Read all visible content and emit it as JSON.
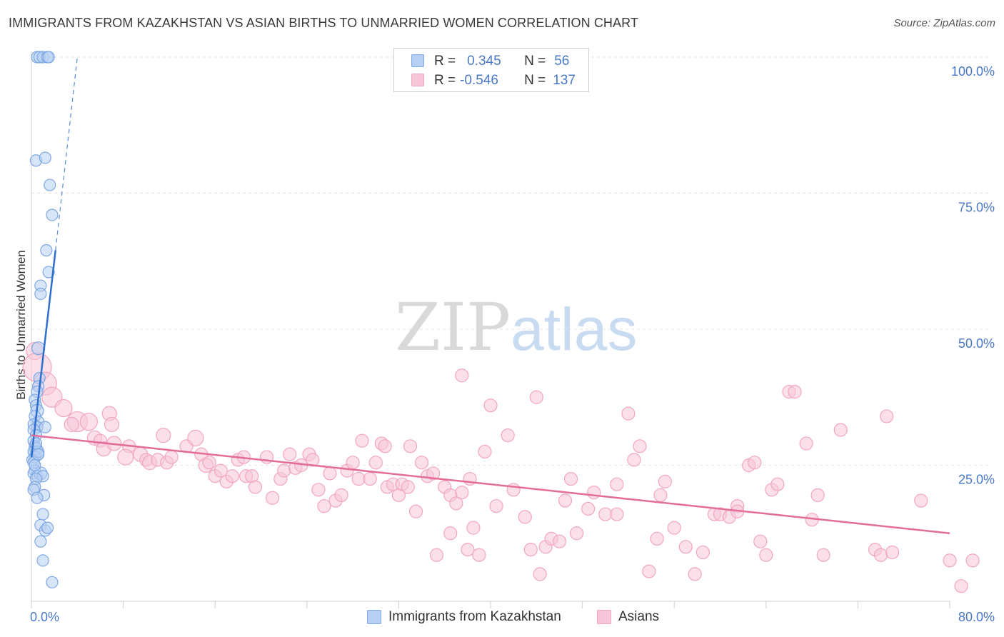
{
  "chart_data": {
    "type": "scatter",
    "title": "IMMIGRANTS FROM KAZAKHSTAN VS ASIAN BIRTHS TO UNMARRIED WOMEN CORRELATION CHART",
    "source": "Source: ZipAtlas.com",
    "xlabel": "",
    "ylabel": "Births to Unmarried Women",
    "xlim": [
      0,
      80
    ],
    "ylim": [
      0,
      100
    ],
    "x_tick_labels": [
      "0.0%",
      "80.0%"
    ],
    "y_tick_labels": [
      "100.0%",
      "75.0%",
      "50.0%",
      "25.0%"
    ],
    "y_tick_values": [
      100,
      75,
      50,
      25
    ],
    "watermark": {
      "part1": "ZIP",
      "part2": "atlas"
    },
    "legend": [
      {
        "r_label": "R =",
        "r_value": "0.345",
        "n_label": "N =",
        "n_value": "56"
      },
      {
        "r_label": "R =",
        "r_value": "-0.546",
        "n_label": "N =",
        "n_value": "137"
      }
    ],
    "series": [
      {
        "name": "Immigrants from Kazakhstan",
        "color": "#7ea7e3",
        "fill": "#b7cff3",
        "line_color": "#2f6fd0",
        "trend": {
          "x0": 0.0,
          "y0": 26.5,
          "x1": 2.1,
          "y1": 64.5,
          "dash_x1": 4.0,
          "dash_y1": 100
        },
        "points": [
          [
            0.5,
            100,
            8
          ],
          [
            0.7,
            100,
            8
          ],
          [
            1.0,
            100,
            8
          ],
          [
            1.4,
            100,
            8
          ],
          [
            1.5,
            100,
            8
          ],
          [
            0.4,
            81,
            8
          ],
          [
            1.2,
            81.5,
            8
          ],
          [
            1.6,
            76.5,
            8
          ],
          [
            1.8,
            71,
            8
          ],
          [
            1.3,
            64.5,
            8
          ],
          [
            1.5,
            60.5,
            8
          ],
          [
            0.8,
            58,
            8
          ],
          [
            0.8,
            56.5,
            8
          ],
          [
            0.6,
            46.5,
            9
          ],
          [
            0.7,
            41,
            8
          ],
          [
            0.6,
            39.5,
            8
          ],
          [
            0.5,
            38.5,
            8
          ],
          [
            0.3,
            37,
            8
          ],
          [
            0.4,
            36,
            8
          ],
          [
            0.5,
            35,
            9
          ],
          [
            0.3,
            34,
            8
          ],
          [
            0.6,
            33,
            8
          ],
          [
            0.2,
            32.5,
            8
          ],
          [
            0.5,
            32,
            8
          ],
          [
            1.2,
            32,
            8
          ],
          [
            0.2,
            31.5,
            8
          ],
          [
            0.4,
            30.5,
            8
          ],
          [
            0.2,
            29.5,
            8
          ],
          [
            0.3,
            28.5,
            8
          ],
          [
            0.4,
            28,
            9
          ],
          [
            0.2,
            27.5,
            8
          ],
          [
            0.5,
            27,
            9
          ],
          [
            0.3,
            26.5,
            8
          ],
          [
            0.1,
            26,
            8
          ],
          [
            0.6,
            27.5,
            8
          ],
          [
            0.2,
            25.5,
            8
          ],
          [
            0.3,
            24,
            8
          ],
          [
            0.2,
            23.5,
            8
          ],
          [
            0.5,
            23,
            8
          ],
          [
            0.8,
            23.5,
            9
          ],
          [
            1.0,
            23,
            8
          ],
          [
            0.4,
            22.5,
            8
          ],
          [
            0.3,
            21,
            8
          ],
          [
            0.2,
            20.5,
            8
          ],
          [
            1.1,
            19.5,
            8
          ],
          [
            0.5,
            19,
            8
          ],
          [
            1.0,
            16,
            8
          ],
          [
            0.8,
            14,
            8
          ],
          [
            1.2,
            13,
            8
          ],
          [
            1.4,
            13.5,
            8
          ],
          [
            0.8,
            11,
            8
          ],
          [
            1.0,
            7.5,
            8
          ],
          [
            1.8,
            3.5,
            8
          ],
          [
            0.6,
            27,
            8
          ],
          [
            0.4,
            29,
            8
          ],
          [
            0.3,
            25,
            8
          ]
        ]
      },
      {
        "name": "Asians",
        "color": "#f2a5c0",
        "fill": "#f7c6d8",
        "line_color": "#e36c98",
        "trend": {
          "x0": 0.0,
          "y0": 30.5,
          "x1": 80.0,
          "y1": 12.5
        },
        "points": [
          [
            0.3,
            46,
            12
          ],
          [
            0.5,
            43,
            20
          ],
          [
            1.2,
            40,
            16
          ],
          [
            1.8,
            37.5,
            14
          ],
          [
            2.8,
            35.5,
            12
          ],
          [
            4.0,
            33,
            14
          ],
          [
            3.5,
            32.5,
            10
          ],
          [
            5.0,
            33,
            12
          ],
          [
            6.8,
            34.5,
            10
          ],
          [
            7.0,
            32.5,
            10
          ],
          [
            5.5,
            30,
            10
          ],
          [
            6.0,
            29.5,
            9
          ],
          [
            6.3,
            28,
            10
          ],
          [
            7.2,
            29,
            10
          ],
          [
            8.5,
            28.5,
            9
          ],
          [
            8.2,
            26.5,
            11
          ],
          [
            9.5,
            27,
            10
          ],
          [
            10.0,
            26,
            9
          ],
          [
            10.3,
            25.5,
            10
          ],
          [
            11.0,
            26,
            9
          ],
          [
            11.8,
            25.5,
            9
          ],
          [
            12.2,
            26.5,
            9
          ],
          [
            11.5,
            30.5,
            10
          ],
          [
            13.5,
            28.5,
            9
          ],
          [
            14.3,
            30,
            11
          ],
          [
            14.8,
            27,
            9
          ],
          [
            15.2,
            25,
            10
          ],
          [
            15.5,
            25.5,
            9
          ],
          [
            16.0,
            23,
            9
          ],
          [
            16.5,
            24,
            9
          ],
          [
            17.0,
            22,
            9
          ],
          [
            17.5,
            23,
            9
          ],
          [
            18.0,
            26,
            9
          ],
          [
            18.5,
            26.5,
            9
          ],
          [
            18.7,
            23,
            9
          ],
          [
            19.2,
            23,
            9
          ],
          [
            19.5,
            21,
            9
          ],
          [
            20.5,
            26.5,
            9
          ],
          [
            21.0,
            19,
            9
          ],
          [
            21.7,
            22.5,
            9
          ],
          [
            22.0,
            24,
            9
          ],
          [
            22.5,
            27,
            9
          ],
          [
            23.0,
            24.5,
            9
          ],
          [
            23.5,
            25,
            9
          ],
          [
            24.2,
            27,
            9
          ],
          [
            24.5,
            26,
            9
          ],
          [
            25.0,
            20.5,
            9
          ],
          [
            25.5,
            17.5,
            9
          ],
          [
            26.0,
            23.5,
            9
          ],
          [
            26.5,
            18.5,
            9
          ],
          [
            27.0,
            19.5,
            9
          ],
          [
            27.5,
            24,
            9
          ],
          [
            28.0,
            25.5,
            9
          ],
          [
            28.8,
            29.5,
            9
          ],
          [
            28.5,
            22.5,
            9
          ],
          [
            29.5,
            22.5,
            9
          ],
          [
            30.0,
            25.5,
            9
          ],
          [
            30.5,
            29,
            9
          ],
          [
            30.8,
            28.5,
            9
          ],
          [
            31.0,
            21,
            9
          ],
          [
            31.5,
            21.5,
            9
          ],
          [
            32.0,
            19.5,
            9
          ],
          [
            32.3,
            21.5,
            9
          ],
          [
            32.8,
            21,
            9
          ],
          [
            33.0,
            28.5,
            9
          ],
          [
            33.5,
            16.5,
            9
          ],
          [
            34.0,
            25.5,
            9
          ],
          [
            34.5,
            23,
            9
          ],
          [
            35.0,
            23.5,
            9
          ],
          [
            35.3,
            8.5,
            9
          ],
          [
            36.0,
            21,
            9
          ],
          [
            36.5,
            19.5,
            9
          ],
          [
            37.0,
            18,
            9
          ],
          [
            37.5,
            20,
            9
          ],
          [
            37.5,
            41.5,
            9
          ],
          [
            38.0,
            9.5,
            9
          ],
          [
            38.5,
            13.5,
            9
          ],
          [
            39.0,
            8.5,
            9
          ],
          [
            38.2,
            22.5,
            9
          ],
          [
            39.5,
            27.5,
            9
          ],
          [
            40.0,
            36,
            9
          ],
          [
            40.5,
            17.5,
            9
          ],
          [
            41.5,
            30.5,
            9
          ],
          [
            42.0,
            20.5,
            9
          ],
          [
            43.0,
            15.5,
            9
          ],
          [
            43.5,
            9.5,
            9
          ],
          [
            44.0,
            37.5,
            9
          ],
          [
            44.3,
            5,
            9
          ],
          [
            44.8,
            10,
            9
          ],
          [
            45.3,
            11.5,
            9
          ],
          [
            46.0,
            11,
            9
          ],
          [
            46.5,
            18.5,
            9
          ],
          [
            47.0,
            22.5,
            9
          ],
          [
            47.5,
            12.5,
            9
          ],
          [
            48.5,
            17,
            9
          ],
          [
            49.0,
            20,
            9
          ],
          [
            50.0,
            16,
            9
          ],
          [
            51.0,
            21.5,
            9
          ],
          [
            51.0,
            16,
            9
          ],
          [
            52.0,
            34.5,
            9
          ],
          [
            52.5,
            26,
            9
          ],
          [
            53.0,
            28.5,
            9
          ],
          [
            53.8,
            5.5,
            9
          ],
          [
            54.5,
            11.5,
            9
          ],
          [
            54.8,
            19.5,
            9
          ],
          [
            55.2,
            22,
            9
          ],
          [
            56.0,
            13.5,
            9
          ],
          [
            57.0,
            10,
            9
          ],
          [
            57.8,
            5,
            9
          ],
          [
            58.5,
            9,
            9
          ],
          [
            59.5,
            16,
            9
          ],
          [
            60.0,
            16,
            9
          ],
          [
            60.8,
            15.5,
            9
          ],
          [
            61.5,
            17.5,
            9
          ],
          [
            61.5,
            16.5,
            9
          ],
          [
            62.5,
            25,
            9
          ],
          [
            63.0,
            25.5,
            9
          ],
          [
            63.5,
            11,
            9
          ],
          [
            64.0,
            8.5,
            9
          ],
          [
            64.5,
            20.5,
            9
          ],
          [
            65.0,
            21.5,
            9
          ],
          [
            66.0,
            38.5,
            9
          ],
          [
            66.5,
            38.5,
            9
          ],
          [
            67.5,
            29,
            9
          ],
          [
            68.0,
            15,
            9
          ],
          [
            68.5,
            19.5,
            9
          ],
          [
            69.0,
            8.5,
            9
          ],
          [
            70.5,
            31.5,
            9
          ],
          [
            73.5,
            9.5,
            9
          ],
          [
            74.0,
            8.5,
            9
          ],
          [
            74.5,
            34,
            9
          ],
          [
            75.0,
            9,
            9
          ],
          [
            77.5,
            18.5,
            9
          ],
          [
            80.0,
            7.5,
            9
          ],
          [
            81.0,
            2.8,
            9
          ],
          [
            82.0,
            7.5,
            9
          ],
          [
            36.5,
            12.5,
            9
          ]
        ]
      }
    ]
  }
}
